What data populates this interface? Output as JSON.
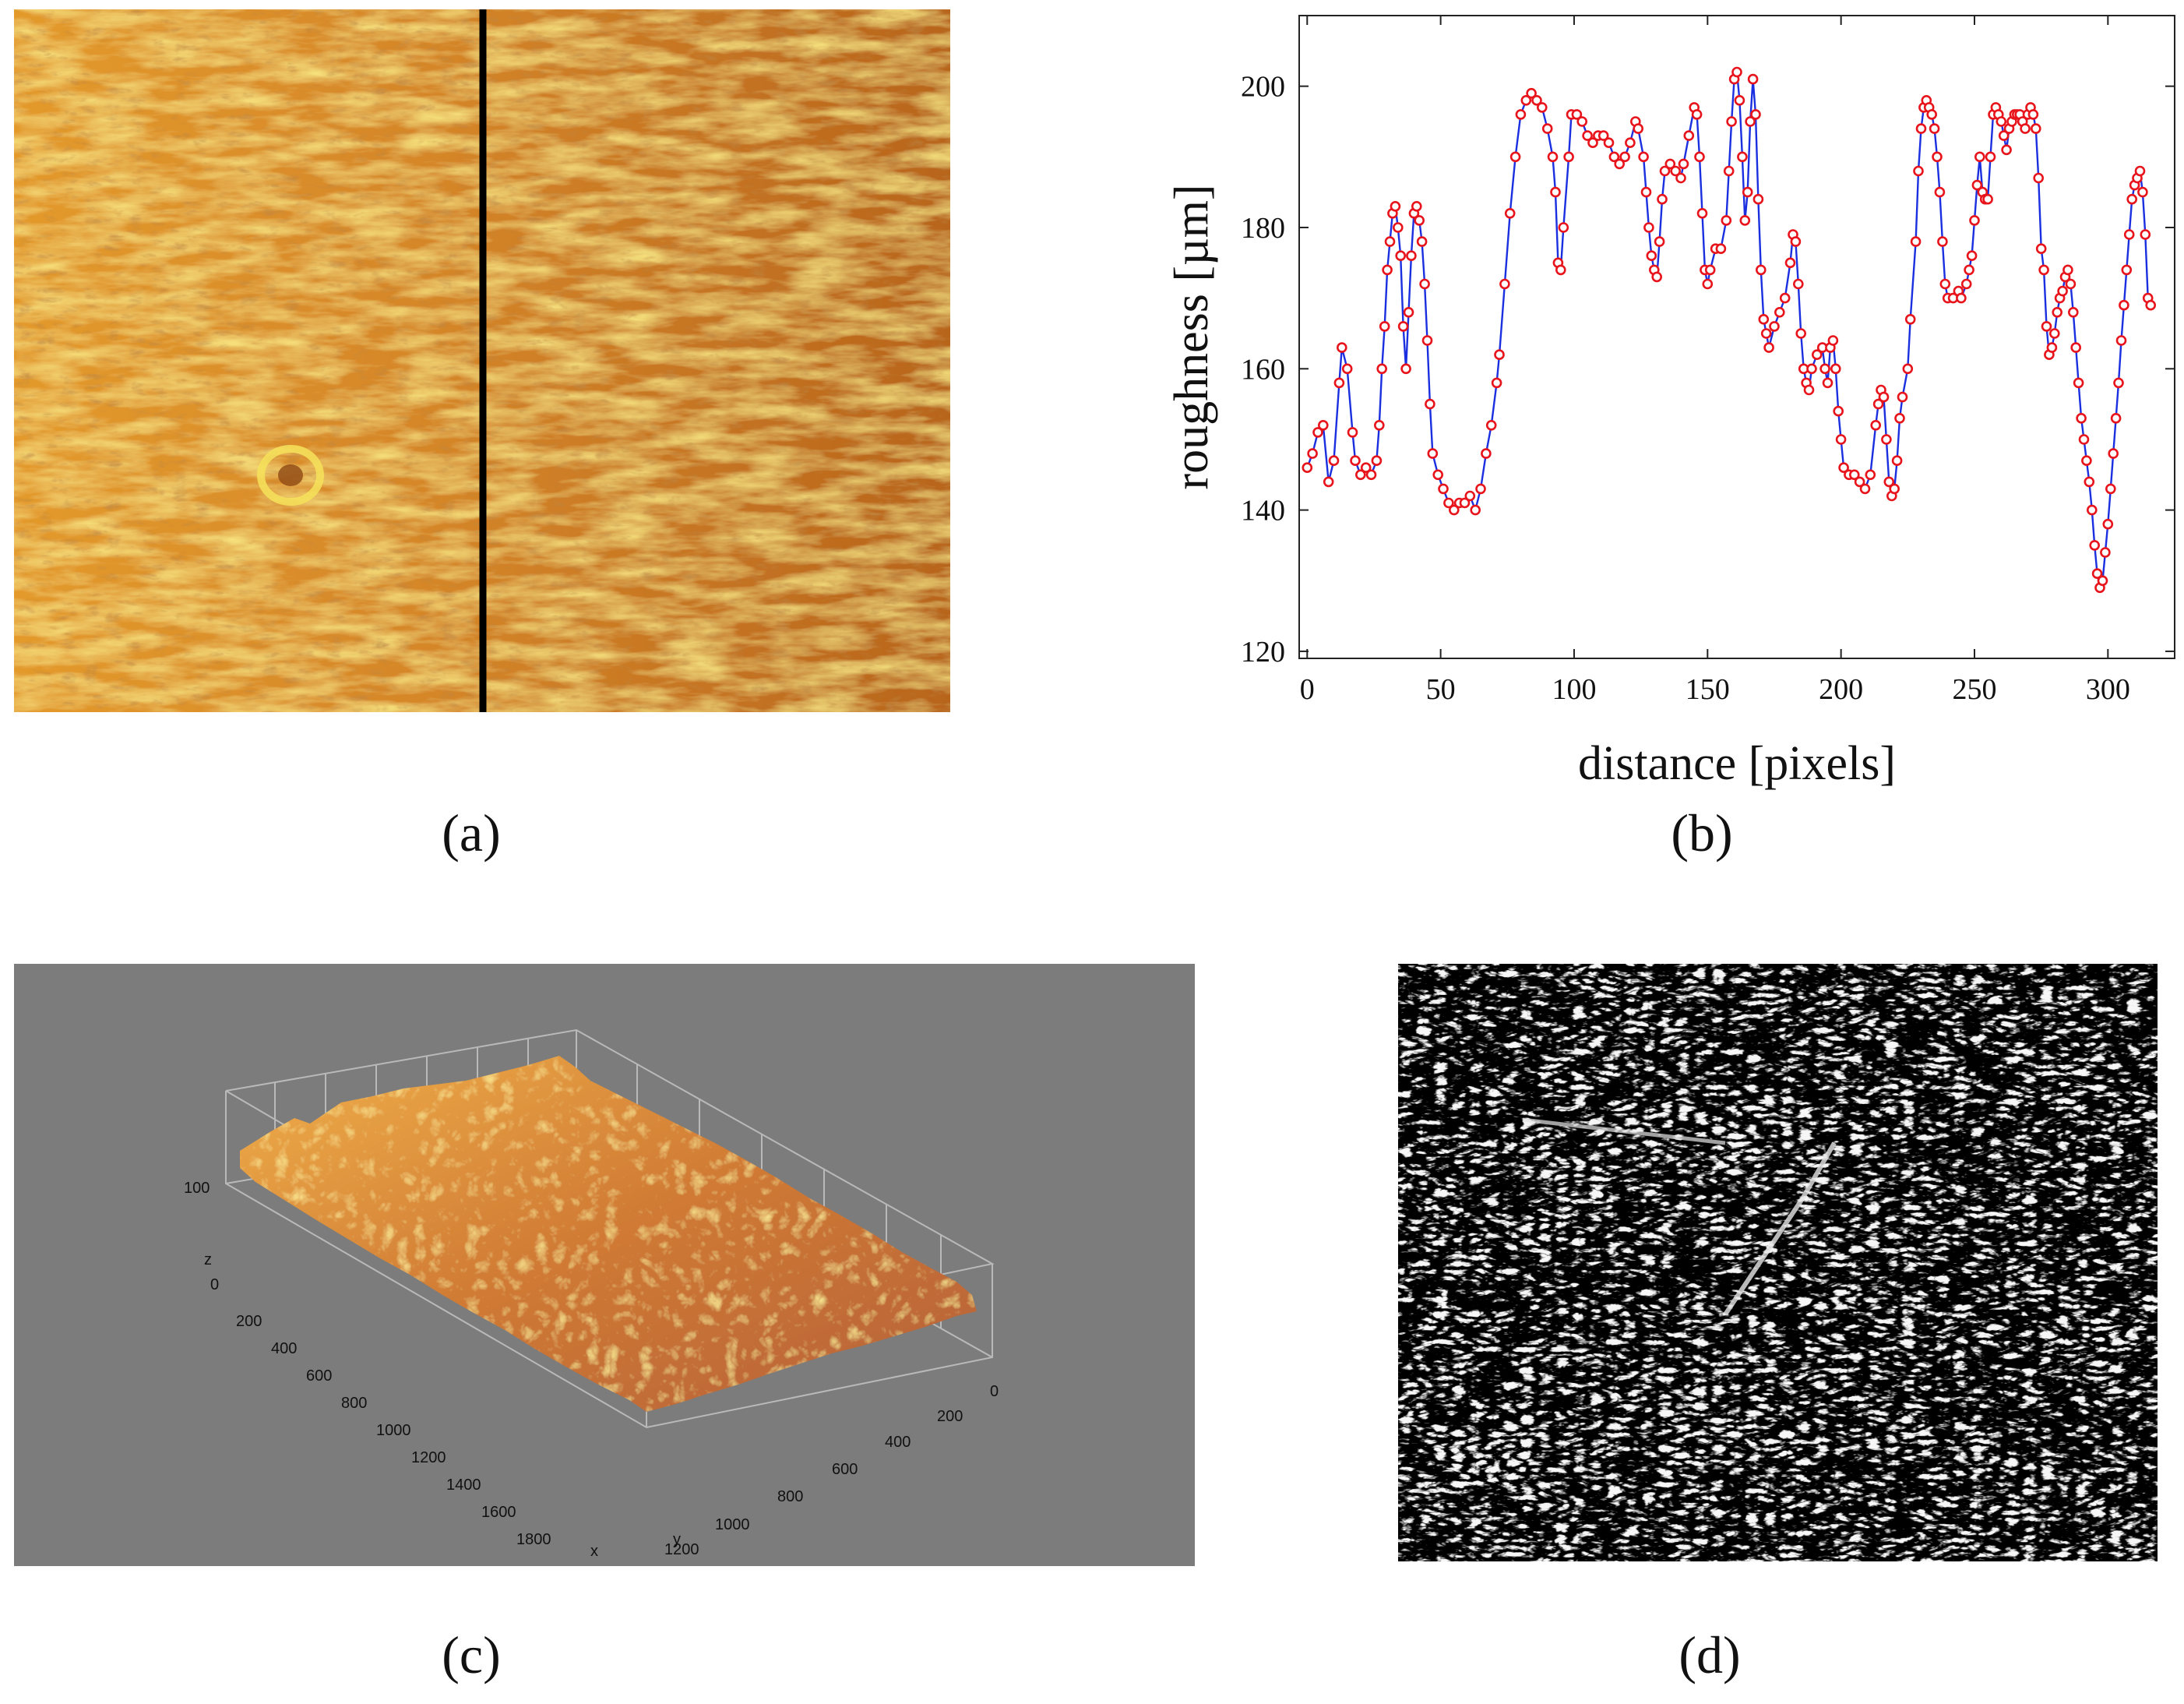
{
  "colors": {
    "micro_base": "#c9771f",
    "micro_highlight": "#f2d23a",
    "micro_shadow": "#8f4a14",
    "scan_line": "#000000",
    "line_color": "#1a2fe0",
    "marker_color": "#e8141c",
    "surface_background": "#7c7c7c",
    "surface_grid": "#b9b9b9",
    "edge_background": "#000000",
    "edge_lines": "#e6e6e6"
  },
  "panel_a": {
    "caption": "(a)",
    "image": "optical micrograph of surface with vertical scan line",
    "icon": "micrograph-image"
  },
  "panel_c": {
    "caption": "(c)",
    "z_label": "z",
    "x_label": "x",
    "y_label": "y",
    "z_ticks": [
      "100",
      "0"
    ],
    "x_ticks": [
      "200",
      "400",
      "600",
      "800",
      "1000",
      "1200",
      "1400",
      "1600",
      "1800"
    ],
    "y_ticks": [
      "0",
      "200",
      "400",
      "600",
      "800",
      "1000",
      "1200"
    ]
  },
  "panel_d": {
    "caption": "(d)",
    "image": "edge-detected surface map",
    "icon": "edge-map-image"
  },
  "chart_data": {
    "type": "line",
    "caption": "(b)",
    "title": "",
    "xlabel": "distance [pixels]",
    "ylabel": "roughness [µm]",
    "xlim": [
      -3,
      325
    ],
    "ylim": [
      119,
      210
    ],
    "xticks": [
      0,
      50,
      100,
      150,
      200,
      250,
      300
    ],
    "yticks": [
      120,
      140,
      160,
      180,
      200
    ],
    "xtick_labels": [
      "0",
      "50",
      "100",
      "150",
      "200",
      "250",
      "300"
    ],
    "ytick_labels": [
      "120",
      "140",
      "160",
      "180",
      "200"
    ],
    "grid": false,
    "series": [
      {
        "name": "roughness profile",
        "line": "blue",
        "marker": "red open circles",
        "points": [
          [
            0,
            146
          ],
          [
            2,
            148
          ],
          [
            4,
            151
          ],
          [
            6,
            152
          ],
          [
            8,
            144
          ],
          [
            10,
            147
          ],
          [
            12,
            158
          ],
          [
            13,
            163
          ],
          [
            15,
            160
          ],
          [
            17,
            151
          ],
          [
            18,
            147
          ],
          [
            20,
            145
          ],
          [
            22,
            146
          ],
          [
            24,
            145
          ],
          [
            26,
            147
          ],
          [
            27,
            152
          ],
          [
            28,
            160
          ],
          [
            29,
            166
          ],
          [
            30,
            174
          ],
          [
            31,
            178
          ],
          [
            32,
            182
          ],
          [
            33,
            183
          ],
          [
            34,
            180
          ],
          [
            35,
            176
          ],
          [
            36,
            166
          ],
          [
            37,
            160
          ],
          [
            38,
            168
          ],
          [
            39,
            176
          ],
          [
            40,
            182
          ],
          [
            41,
            183
          ],
          [
            42,
            181
          ],
          [
            43,
            178
          ],
          [
            44,
            172
          ],
          [
            45,
            164
          ],
          [
            46,
            155
          ],
          [
            47,
            148
          ],
          [
            49,
            145
          ],
          [
            51,
            143
          ],
          [
            53,
            141
          ],
          [
            55,
            140
          ],
          [
            57,
            141
          ],
          [
            59,
            141
          ],
          [
            61,
            142
          ],
          [
            63,
            140
          ],
          [
            65,
            143
          ],
          [
            67,
            148
          ],
          [
            69,
            152
          ],
          [
            71,
            158
          ],
          [
            72,
            162
          ],
          [
            74,
            172
          ],
          [
            76,
            182
          ],
          [
            78,
            190
          ],
          [
            80,
            196
          ],
          [
            82,
            198
          ],
          [
            84,
            199
          ],
          [
            86,
            198
          ],
          [
            88,
            197
          ],
          [
            90,
            194
          ],
          [
            92,
            190
          ],
          [
            93,
            185
          ],
          [
            94,
            175
          ],
          [
            95,
            174
          ],
          [
            96,
            180
          ],
          [
            98,
            190
          ],
          [
            99,
            196
          ],
          [
            101,
            196
          ],
          [
            103,
            195
          ],
          [
            105,
            193
          ],
          [
            107,
            192
          ],
          [
            109,
            193
          ],
          [
            111,
            193
          ],
          [
            113,
            192
          ],
          [
            115,
            190
          ],
          [
            117,
            189
          ],
          [
            119,
            190
          ],
          [
            121,
            192
          ],
          [
            123,
            195
          ],
          [
            124,
            194
          ],
          [
            126,
            190
          ],
          [
            127,
            185
          ],
          [
            128,
            180
          ],
          [
            129,
            176
          ],
          [
            130,
            174
          ],
          [
            131,
            173
          ],
          [
            132,
            178
          ],
          [
            133,
            184
          ],
          [
            134,
            188
          ],
          [
            136,
            189
          ],
          [
            138,
            188
          ],
          [
            140,
            187
          ],
          [
            141,
            189
          ],
          [
            143,
            193
          ],
          [
            145,
            197
          ],
          [
            146,
            196
          ],
          [
            147,
            190
          ],
          [
            148,
            182
          ],
          [
            149,
            174
          ],
          [
            150,
            172
          ],
          [
            151,
            174
          ],
          [
            153,
            177
          ],
          [
            155,
            177
          ],
          [
            157,
            181
          ],
          [
            158,
            188
          ],
          [
            159,
            195
          ],
          [
            160,
            201
          ],
          [
            161,
            202
          ],
          [
            162,
            198
          ],
          [
            163,
            190
          ],
          [
            164,
            181
          ],
          [
            165,
            185
          ],
          [
            166,
            195
          ],
          [
            167,
            201
          ],
          [
            168,
            196
          ],
          [
            169,
            184
          ],
          [
            170,
            174
          ],
          [
            171,
            167
          ],
          [
            172,
            165
          ],
          [
            173,
            163
          ],
          [
            175,
            166
          ],
          [
            177,
            168
          ],
          [
            179,
            170
          ],
          [
            181,
            175
          ],
          [
            182,
            179
          ],
          [
            183,
            178
          ],
          [
            184,
            172
          ],
          [
            185,
            165
          ],
          [
            186,
            160
          ],
          [
            187,
            158
          ],
          [
            188,
            157
          ],
          [
            189,
            160
          ],
          [
            191,
            162
          ],
          [
            193,
            163
          ],
          [
            194,
            160
          ],
          [
            195,
            158
          ],
          [
            196,
            163
          ],
          [
            197,
            164
          ],
          [
            198,
            160
          ],
          [
            199,
            154
          ],
          [
            200,
            150
          ],
          [
            201,
            146
          ],
          [
            203,
            145
          ],
          [
            205,
            145
          ],
          [
            207,
            144
          ],
          [
            209,
            143
          ],
          [
            211,
            145
          ],
          [
            213,
            152
          ],
          [
            214,
            155
          ],
          [
            215,
            157
          ],
          [
            216,
            156
          ],
          [
            217,
            150
          ],
          [
            218,
            144
          ],
          [
            219,
            142
          ],
          [
            220,
            143
          ],
          [
            221,
            147
          ],
          [
            222,
            153
          ],
          [
            223,
            156
          ],
          [
            225,
            160
          ],
          [
            226,
            167
          ],
          [
            228,
            178
          ],
          [
            229,
            188
          ],
          [
            230,
            194
          ],
          [
            231,
            197
          ],
          [
            232,
            198
          ],
          [
            233,
            197
          ],
          [
            234,
            196
          ],
          [
            235,
            194
          ],
          [
            236,
            190
          ],
          [
            237,
            185
          ],
          [
            238,
            178
          ],
          [
            239,
            172
          ],
          [
            240,
            170
          ],
          [
            242,
            170
          ],
          [
            244,
            171
          ],
          [
            245,
            170
          ],
          [
            247,
            172
          ],
          [
            248,
            174
          ],
          [
            249,
            176
          ],
          [
            250,
            181
          ],
          [
            251,
            186
          ],
          [
            252,
            190
          ],
          [
            253,
            185
          ],
          [
            254,
            184
          ],
          [
            255,
            184
          ],
          [
            256,
            190
          ],
          [
            257,
            196
          ],
          [
            258,
            197
          ],
          [
            259,
            196
          ],
          [
            260,
            195
          ],
          [
            261,
            193
          ],
          [
            262,
            191
          ],
          [
            263,
            194
          ],
          [
            264,
            195
          ],
          [
            265,
            196
          ],
          [
            266,
            196
          ],
          [
            267,
            196
          ],
          [
            268,
            195
          ],
          [
            269,
            194
          ],
          [
            270,
            196
          ],
          [
            271,
            197
          ],
          [
            272,
            196
          ],
          [
            273,
            194
          ],
          [
            274,
            187
          ],
          [
            275,
            177
          ],
          [
            276,
            174
          ],
          [
            277,
            166
          ],
          [
            278,
            162
          ],
          [
            279,
            163
          ],
          [
            280,
            165
          ],
          [
            281,
            168
          ],
          [
            282,
            170
          ],
          [
            283,
            171
          ],
          [
            284,
            173
          ],
          [
            285,
            174
          ],
          [
            286,
            172
          ],
          [
            287,
            168
          ],
          [
            288,
            163
          ],
          [
            289,
            158
          ],
          [
            290,
            153
          ],
          [
            291,
            150
          ],
          [
            292,
            147
          ],
          [
            293,
            144
          ],
          [
            294,
            140
          ],
          [
            295,
            135
          ],
          [
            296,
            131
          ],
          [
            297,
            129
          ],
          [
            298,
            130
          ],
          [
            299,
            134
          ],
          [
            300,
            138
          ],
          [
            301,
            143
          ],
          [
            302,
            148
          ],
          [
            303,
            153
          ],
          [
            304,
            158
          ],
          [
            305,
            164
          ],
          [
            306,
            169
          ],
          [
            307,
            174
          ],
          [
            308,
            179
          ],
          [
            309,
            184
          ],
          [
            310,
            186
          ],
          [
            311,
            187
          ],
          [
            312,
            188
          ],
          [
            313,
            185
          ],
          [
            314,
            179
          ],
          [
            315,
            170
          ],
          [
            316,
            169
          ]
        ]
      }
    ]
  }
}
